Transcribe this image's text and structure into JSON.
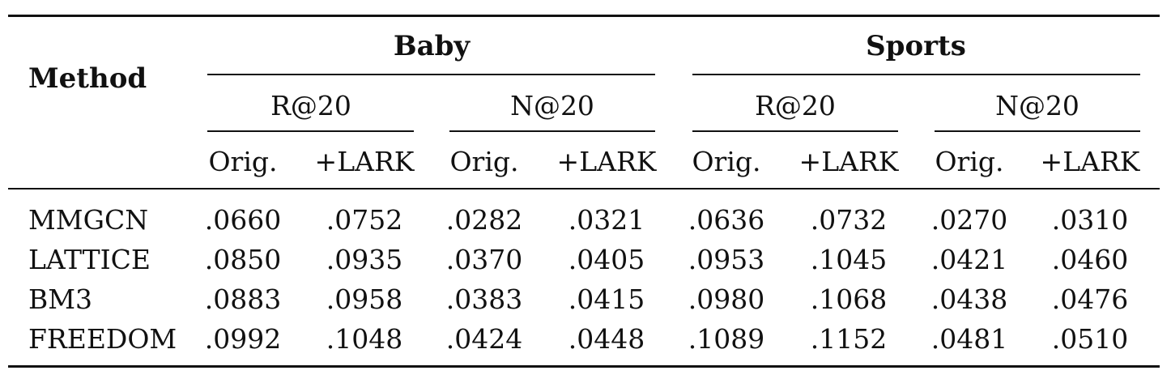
{
  "table": {
    "method_header": "Method",
    "datasets": [
      {
        "name": "Baby",
        "metrics": [
          {
            "name": "R@20",
            "cols": [
              "Orig.",
              "+LARK"
            ]
          },
          {
            "name": "N@20",
            "cols": [
              "Orig.",
              "+LARK"
            ]
          }
        ]
      },
      {
        "name": "Sports",
        "metrics": [
          {
            "name": "R@20",
            "cols": [
              "Orig.",
              "+LARK"
            ]
          },
          {
            "name": "N@20",
            "cols": [
              "Orig.",
              "+LARK"
            ]
          }
        ]
      }
    ],
    "rows": [
      {
        "method": "MMGCN",
        "values": [
          ".0660",
          ".0752",
          ".0282",
          ".0321",
          ".0636",
          ".0732",
          ".0270",
          ".0310"
        ]
      },
      {
        "method": "LATTICE",
        "values": [
          ".0850",
          ".0935",
          ".0370",
          ".0405",
          ".0953",
          ".1045",
          ".0421",
          ".0460"
        ]
      },
      {
        "method": "BM3",
        "values": [
          ".0883",
          ".0958",
          ".0383",
          ".0415",
          ".0980",
          ".1068",
          ".0438",
          ".0476"
        ]
      },
      {
        "method": "FREEDOM",
        "values": [
          ".0992",
          ".1048",
          ".0424",
          ".0448",
          ".1089",
          ".1152",
          ".0481",
          ".0510"
        ]
      }
    ]
  }
}
